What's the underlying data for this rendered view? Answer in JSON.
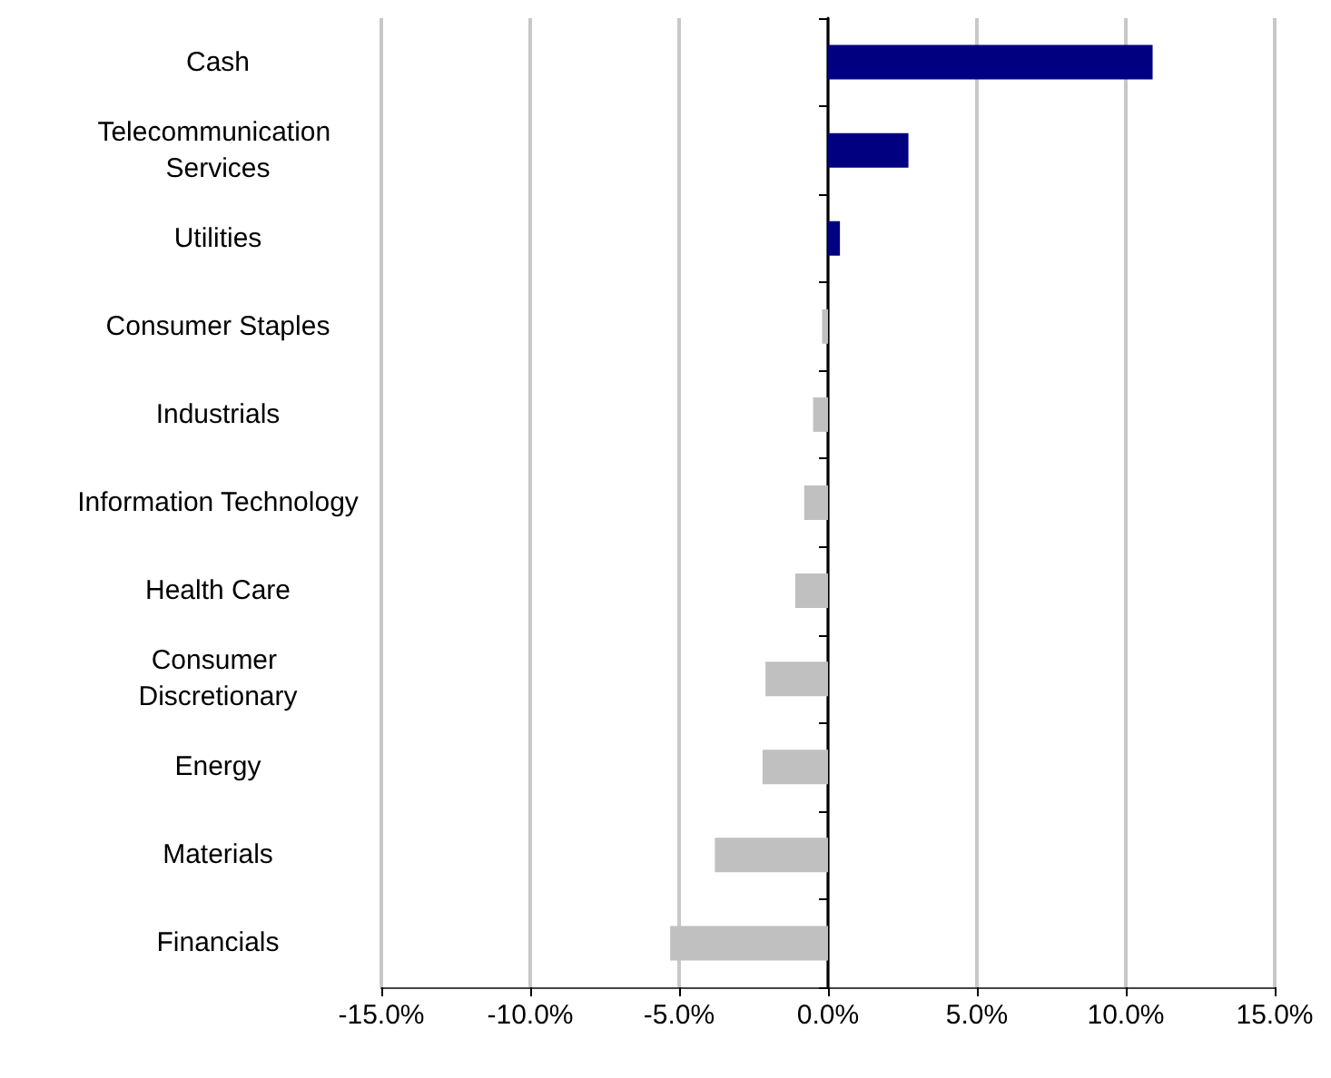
{
  "chart_data": {
    "type": "bar",
    "orientation": "horizontal",
    "categories": [
      "Cash",
      "Telecommunication Services",
      "Utilities",
      "Consumer Staples",
      "Industrials",
      "Information Technology",
      "Health Care",
      "Consumer Discretionary",
      "Energy",
      "Materials",
      "Financials"
    ],
    "values": [
      10.9,
      2.7,
      0.4,
      -0.2,
      -0.5,
      -0.8,
      -1.1,
      -2.1,
      -2.2,
      -3.8,
      -5.3
    ],
    "colors": [
      "#000080",
      "#000080",
      "#000080",
      "#c0c0c0",
      "#c0c0c0",
      "#c0c0c0",
      "#c0c0c0",
      "#c0c0c0",
      "#c0c0c0",
      "#c0c0c0",
      "#c0c0c0"
    ],
    "xlim": [
      -15,
      15
    ],
    "xticks": [
      {
        "value": -15,
        "label": "-15.0%"
      },
      {
        "value": -10,
        "label": "-10.0%"
      },
      {
        "value": -5,
        "label": "-5.0%"
      },
      {
        "value": 0,
        "label": "0.0%"
      },
      {
        "value": 5,
        "label": "5.0%"
      },
      {
        "value": 10,
        "label": "10.0%"
      },
      {
        "value": 15,
        "label": "15.0%"
      }
    ],
    "grid": "x"
  }
}
